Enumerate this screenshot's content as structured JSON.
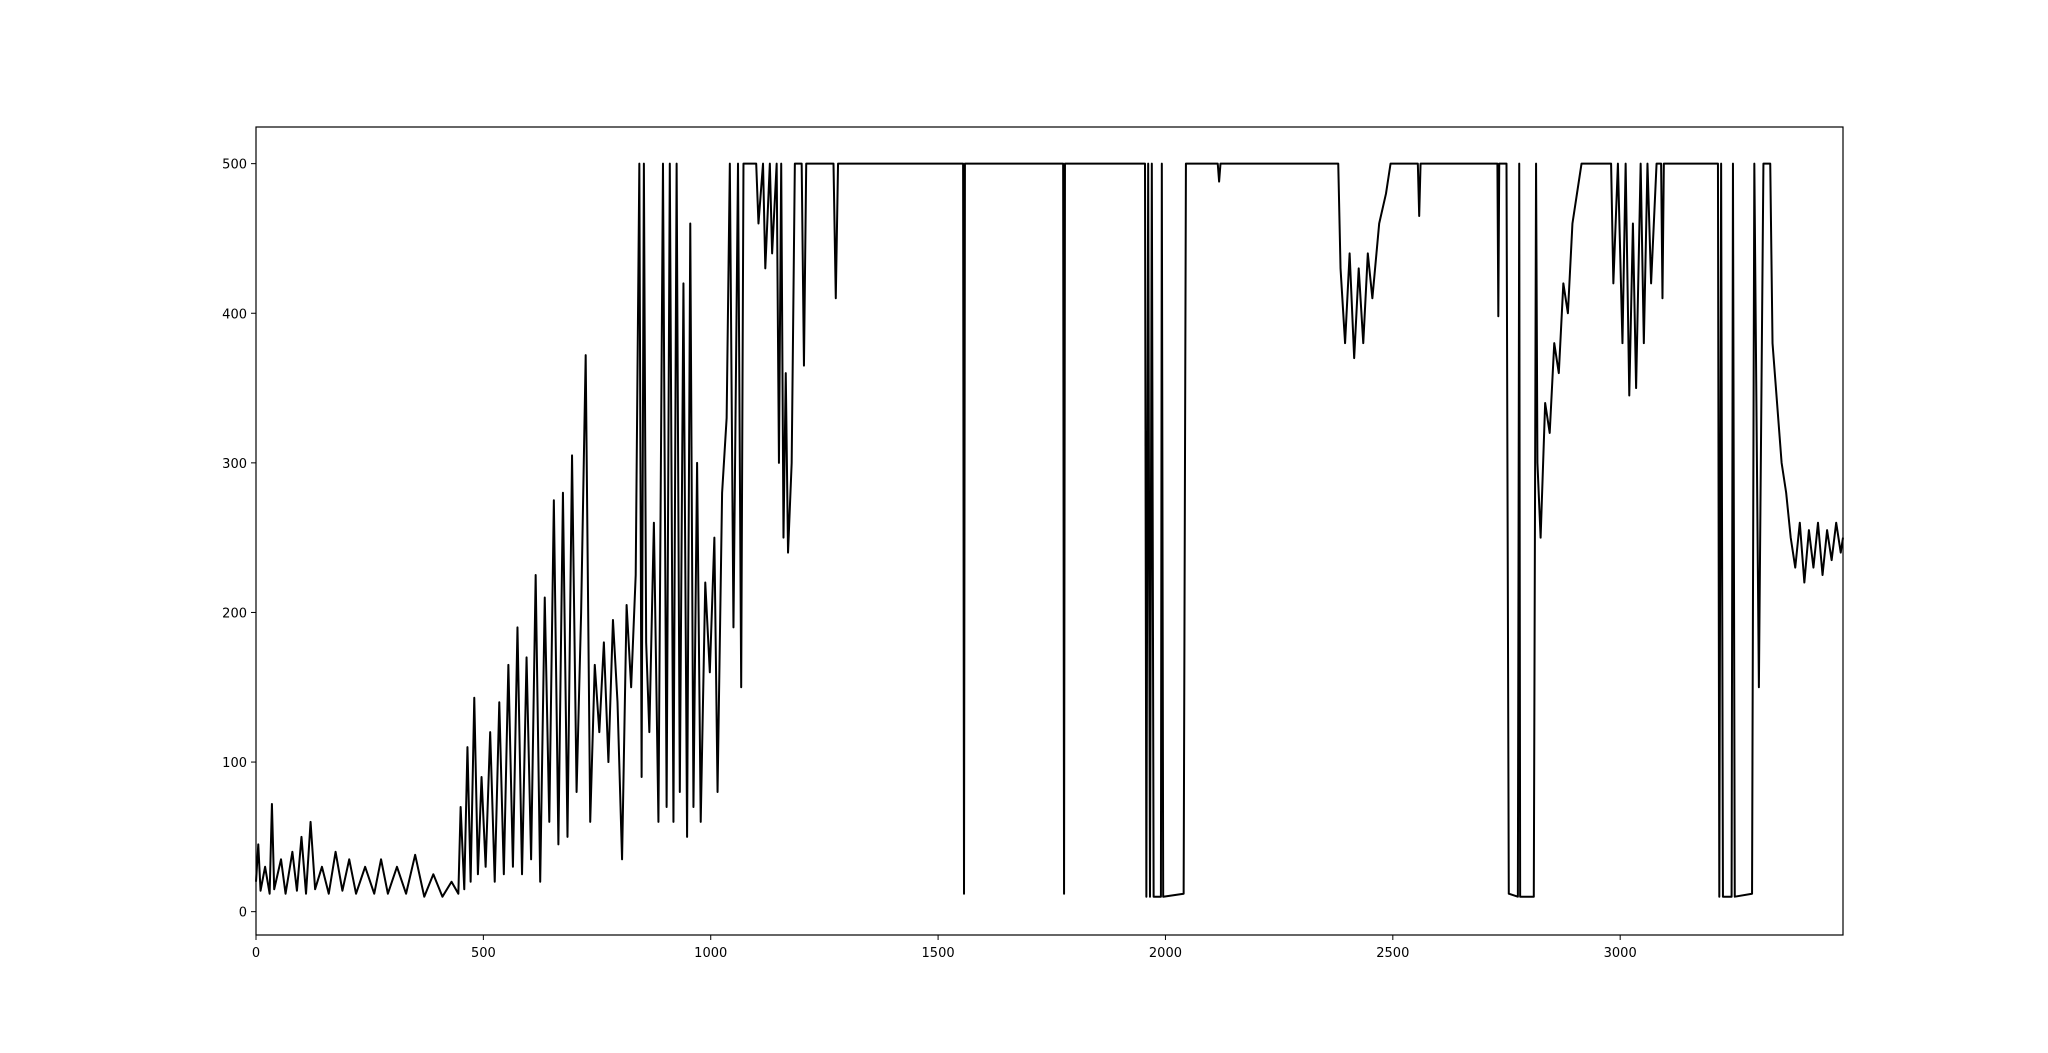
{
  "chart_data": {
    "type": "line",
    "x": [
      0,
      5,
      10,
      20,
      30,
      35,
      40,
      55,
      65,
      80,
      90,
      100,
      110,
      120,
      130,
      145,
      160,
      175,
      190,
      205,
      220,
      240,
      260,
      275,
      290,
      310,
      330,
      350,
      370,
      390,
      410,
      430,
      445,
      450,
      458,
      465,
      472,
      480,
      488,
      496,
      505,
      515,
      525,
      535,
      545,
      555,
      565,
      575,
      585,
      595,
      605,
      615,
      625,
      635,
      645,
      655,
      665,
      675,
      685,
      695,
      705,
      715,
      725,
      735,
      745,
      755,
      765,
      775,
      785,
      795,
      805,
      815,
      825,
      835,
      843,
      848,
      853,
      858,
      865,
      875,
      885,
      895,
      903,
      910,
      918,
      925,
      932,
      940,
      948,
      955,
      962,
      970,
      978,
      988,
      998,
      1008,
      1015,
      1025,
      1035,
      1042,
      1050,
      1060,
      1067,
      1072,
      1100,
      1105,
      1115,
      1120,
      1130,
      1135,
      1145,
      1150,
      1155,
      1160,
      1165,
      1170,
      1178,
      1185,
      1200,
      1205,
      1210,
      1270,
      1275,
      1280,
      1555,
      1557,
      1559,
      1775,
      1777,
      1779,
      1955,
      1958,
      1962,
      1966,
      1970,
      1974,
      1990,
      1992,
      1995,
      2040,
      2045,
      2115,
      2118,
      2121,
      2380,
      2385,
      2395,
      2405,
      2415,
      2425,
      2435,
      2445,
      2455,
      2470,
      2485,
      2495,
      2555,
      2558,
      2561,
      2730,
      2732,
      2734,
      2750,
      2755,
      2775,
      2778,
      2780,
      2810,
      2815,
      2818,
      2825,
      2835,
      2845,
      2855,
      2865,
      2875,
      2885,
      2895,
      2905,
      2915,
      2980,
      2985,
      2995,
      3005,
      3012,
      3020,
      3028,
      3035,
      3045,
      3052,
      3060,
      3068,
      3080,
      3090,
      3093,
      3096,
      3215,
      3218,
      3222,
      3226,
      3245,
      3248,
      3252,
      3290,
      3295,
      3305,
      3315,
      3330,
      3335,
      3345,
      3355,
      3365,
      3375,
      3385,
      3395,
      3405,
      3415,
      3425,
      3435,
      3445,
      3455,
      3465,
      3475,
      3485,
      3490
    ],
    "series": [
      {
        "color": "#000000",
        "values": [
          20,
          45,
          14,
          30,
          12,
          72,
          15,
          35,
          12,
          40,
          14,
          50,
          12,
          60,
          15,
          30,
          12,
          40,
          14,
          35,
          12,
          30,
          12,
          35,
          12,
          30,
          12,
          38,
          10,
          25,
          10,
          20,
          12,
          70,
          15,
          110,
          20,
          143,
          25,
          90,
          30,
          120,
          20,
          140,
          25,
          165,
          30,
          190,
          25,
          170,
          35,
          225,
          20,
          210,
          60,
          275,
          45,
          280,
          50,
          305,
          80,
          200,
          372,
          60,
          165,
          120,
          180,
          100,
          195,
          140,
          35,
          205,
          150,
          225,
          500,
          90,
          500,
          180,
          120,
          260,
          60,
          500,
          70,
          500,
          60,
          500,
          80,
          420,
          50,
          460,
          70,
          300,
          60,
          220,
          160,
          250,
          80,
          280,
          330,
          500,
          190,
          500,
          150,
          500,
          500,
          460,
          500,
          430,
          500,
          440,
          500,
          300,
          500,
          250,
          360,
          240,
          300,
          500,
          500,
          365,
          500,
          500,
          410,
          500,
          500,
          12,
          500,
          500,
          12,
          500,
          500,
          10,
          500,
          10,
          500,
          10,
          10,
          500,
          10,
          12,
          500,
          500,
          488,
          500,
          500,
          430,
          380,
          440,
          370,
          430,
          380,
          440,
          410,
          460,
          480,
          500,
          500,
          465,
          500,
          500,
          398,
          500,
          500,
          12,
          10,
          500,
          10,
          10,
          500,
          300,
          250,
          340,
          320,
          380,
          360,
          420,
          400,
          460,
          480,
          500,
          500,
          420,
          500,
          380,
          500,
          345,
          460,
          350,
          500,
          380,
          500,
          420,
          500,
          500,
          410,
          500,
          500,
          10,
          500,
          10,
          10,
          500,
          10,
          12,
          500,
          150,
          500,
          500,
          380,
          340,
          300,
          280,
          250,
          230,
          260,
          220,
          255,
          230,
          260,
          225,
          255,
          235,
          260,
          240,
          250
        ]
      }
    ],
    "xlim": [
      0,
      3490
    ],
    "ylim": [
      -15.6,
      524.5
    ],
    "xticks": [
      0,
      500,
      1000,
      1500,
      2000,
      2500,
      3000
    ],
    "yticks": [
      0,
      100,
      200,
      300,
      400,
      500
    ]
  }
}
